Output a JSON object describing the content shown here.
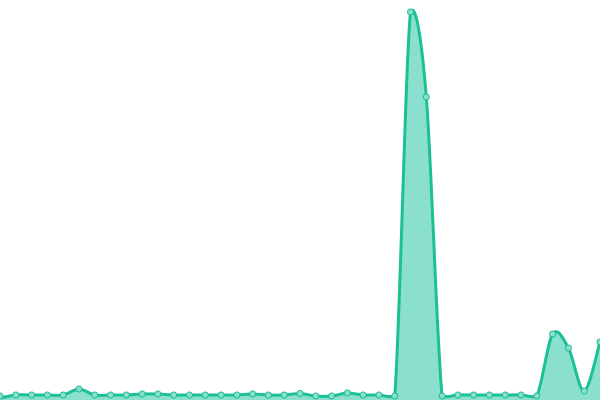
{
  "chart_data": {
    "type": "area",
    "title": "",
    "xlabel": "",
    "ylabel": "",
    "x": [
      0,
      1,
      2,
      3,
      4,
      5,
      6,
      7,
      8,
      9,
      10,
      11,
      12,
      13,
      14,
      15,
      16,
      17,
      18,
      19,
      20,
      21,
      22,
      23,
      24,
      25,
      26,
      27,
      28,
      29,
      30,
      31,
      32,
      33,
      34,
      35,
      36,
      37,
      38
    ],
    "series": [
      {
        "values": [
          0,
          3,
          3,
          3,
          3,
          9,
          3,
          3,
          3,
          4,
          4,
          3,
          3,
          3,
          3,
          3,
          4,
          3,
          3,
          4.5,
          2,
          2,
          5,
          3,
          3,
          2,
          386,
          301,
          2,
          3,
          3,
          3,
          3,
          3,
          2,
          64,
          50,
          7,
          56
        ]
      }
    ],
    "ylim": [
      0,
      398
    ],
    "grid": false,
    "axes_visible": false,
    "colors": {
      "line": "#1dbf94",
      "fill": "#8be0cd",
      "marker_fill": "#8be0cd"
    }
  }
}
